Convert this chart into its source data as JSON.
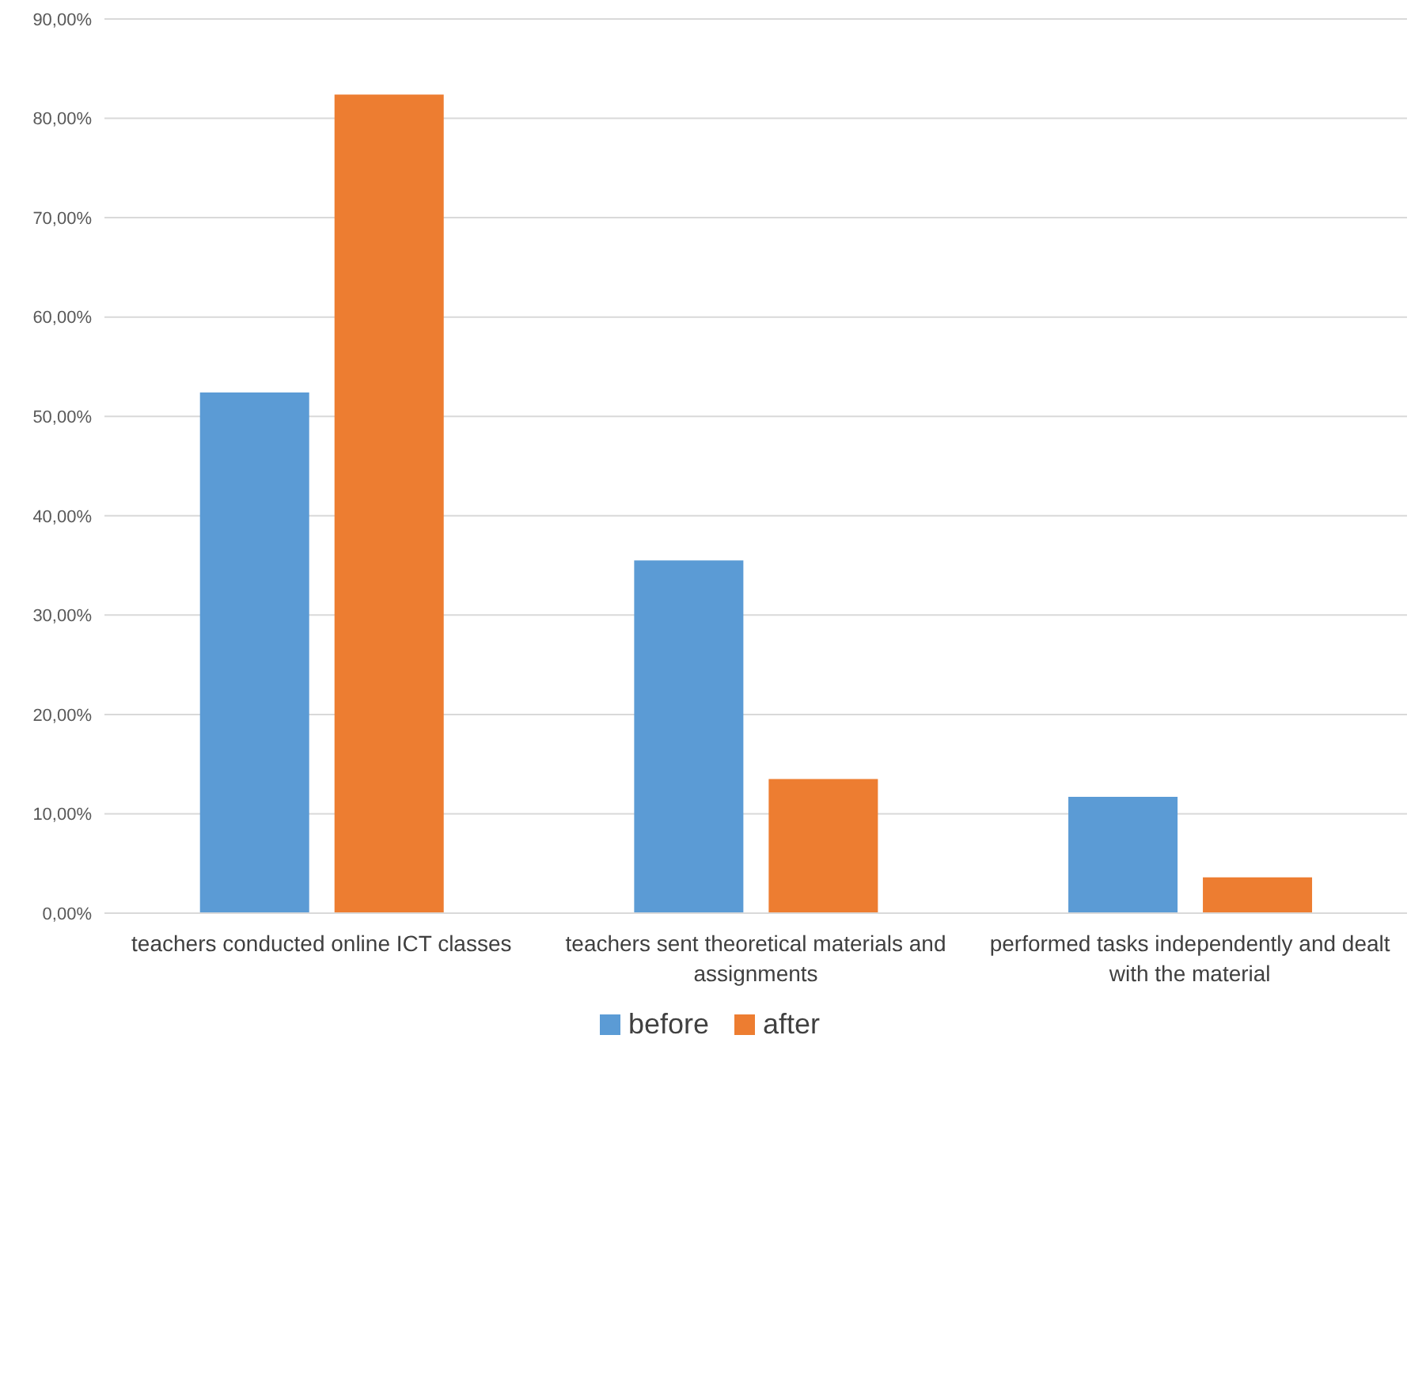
{
  "chart_data": {
    "type": "bar",
    "categories": [
      "teachers conducted online ICT classes",
      "teachers sent theoretical materials and assignments",
      "performed tasks independently and dealt with the material"
    ],
    "series": [
      {
        "name": "before",
        "color": "#5b9bd5",
        "values": [
          52.4,
          35.5,
          11.7
        ]
      },
      {
        "name": "after",
        "color": "#ed7d31",
        "values": [
          82.4,
          13.5,
          3.6
        ]
      }
    ],
    "ylim": [
      0,
      90
    ],
    "yticks": [
      {
        "value": 0,
        "label": "0,00%"
      },
      {
        "value": 10,
        "label": "10,00%"
      },
      {
        "value": 20,
        "label": "20,00%"
      },
      {
        "value": 30,
        "label": "30,00%"
      },
      {
        "value": 40,
        "label": "40,00%"
      },
      {
        "value": 50,
        "label": "50,00%"
      },
      {
        "value": 60,
        "label": "60,00%"
      },
      {
        "value": 70,
        "label": "70,00%"
      },
      {
        "value": 80,
        "label": "80,00%"
      },
      {
        "value": 90,
        "label": "90,00%"
      }
    ],
    "grid": "y",
    "legend": "bottom"
  }
}
